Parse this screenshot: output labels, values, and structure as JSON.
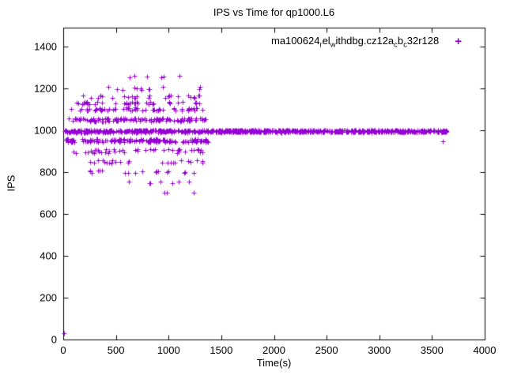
{
  "title": "IPS vs Time for qp1000.L6",
  "legend": {
    "marker": "+",
    "marker_color": "#9400d3",
    "segments": [
      {
        "text": "ma100624"
      },
      {
        "text": "r",
        "sub": true
      },
      {
        "text": "el"
      },
      {
        "text": "w",
        "sub": true
      },
      {
        "text": "ithdbg.cz12a"
      },
      {
        "text": "c",
        "sub": true
      },
      {
        "text": "b"
      },
      {
        "text": "c",
        "sub": true
      },
      {
        "text": "32r128"
      }
    ]
  },
  "chart_data": {
    "type": "scatter",
    "title": "IPS vs Time for qp1000.L6",
    "xlabel": "Time(s)",
    "ylabel": "IPS",
    "xlim": [
      0,
      4000
    ],
    "ylim": [
      0,
      1490
    ],
    "xticks": [
      0,
      500,
      1000,
      1500,
      2000,
      2500,
      3000,
      3500,
      4000
    ],
    "yticks": [
      0,
      200,
      400,
      600,
      800,
      1000,
      1200,
      1400
    ],
    "grid": false,
    "legend_position": "top-right-inside",
    "series": [
      {
        "name": "ma100624_rel_withdbg.cz12a_cb_c32r128",
        "color": "#9400d3",
        "marker": "plus",
        "clusters": [
          {
            "x0": 10,
            "x1": 1380,
            "y": 995,
            "n": 260,
            "jy": 6
          },
          {
            "x0": 20,
            "x1": 1380,
            "y": 950,
            "n": 140,
            "jy": 8
          },
          {
            "x0": 30,
            "x1": 1360,
            "y": 1050,
            "n": 120,
            "jy": 8
          },
          {
            "x0": 40,
            "x1": 1350,
            "y": 900,
            "n": 45,
            "jy": 10
          },
          {
            "x0": 60,
            "x1": 1350,
            "y": 1100,
            "n": 60,
            "jy": 8
          },
          {
            "x0": 100,
            "x1": 1340,
            "y": 1130,
            "n": 40,
            "jy": 6
          },
          {
            "x0": 150,
            "x1": 1320,
            "y": 1160,
            "n": 25,
            "jy": 8
          },
          {
            "x0": 250,
            "x1": 1300,
            "y": 1200,
            "n": 12,
            "jy": 8
          },
          {
            "x0": 600,
            "x1": 1250,
            "y": 1255,
            "n": 6,
            "jy": 6
          },
          {
            "x0": 200,
            "x1": 1330,
            "y": 850,
            "n": 25,
            "jy": 8
          },
          {
            "x0": 250,
            "x1": 1300,
            "y": 800,
            "n": 18,
            "jy": 8
          },
          {
            "x0": 600,
            "x1": 1250,
            "y": 750,
            "n": 7,
            "jy": 6
          },
          {
            "x0": 900,
            "x1": 1250,
            "y": 700,
            "n": 3,
            "jy": 5
          },
          {
            "x0": 1390,
            "x1": 3640,
            "y": 995,
            "n": 560,
            "jy": 5
          }
        ],
        "points": [
          [
            5,
            30
          ],
          [
            3600,
            945
          ]
        ]
      }
    ]
  }
}
